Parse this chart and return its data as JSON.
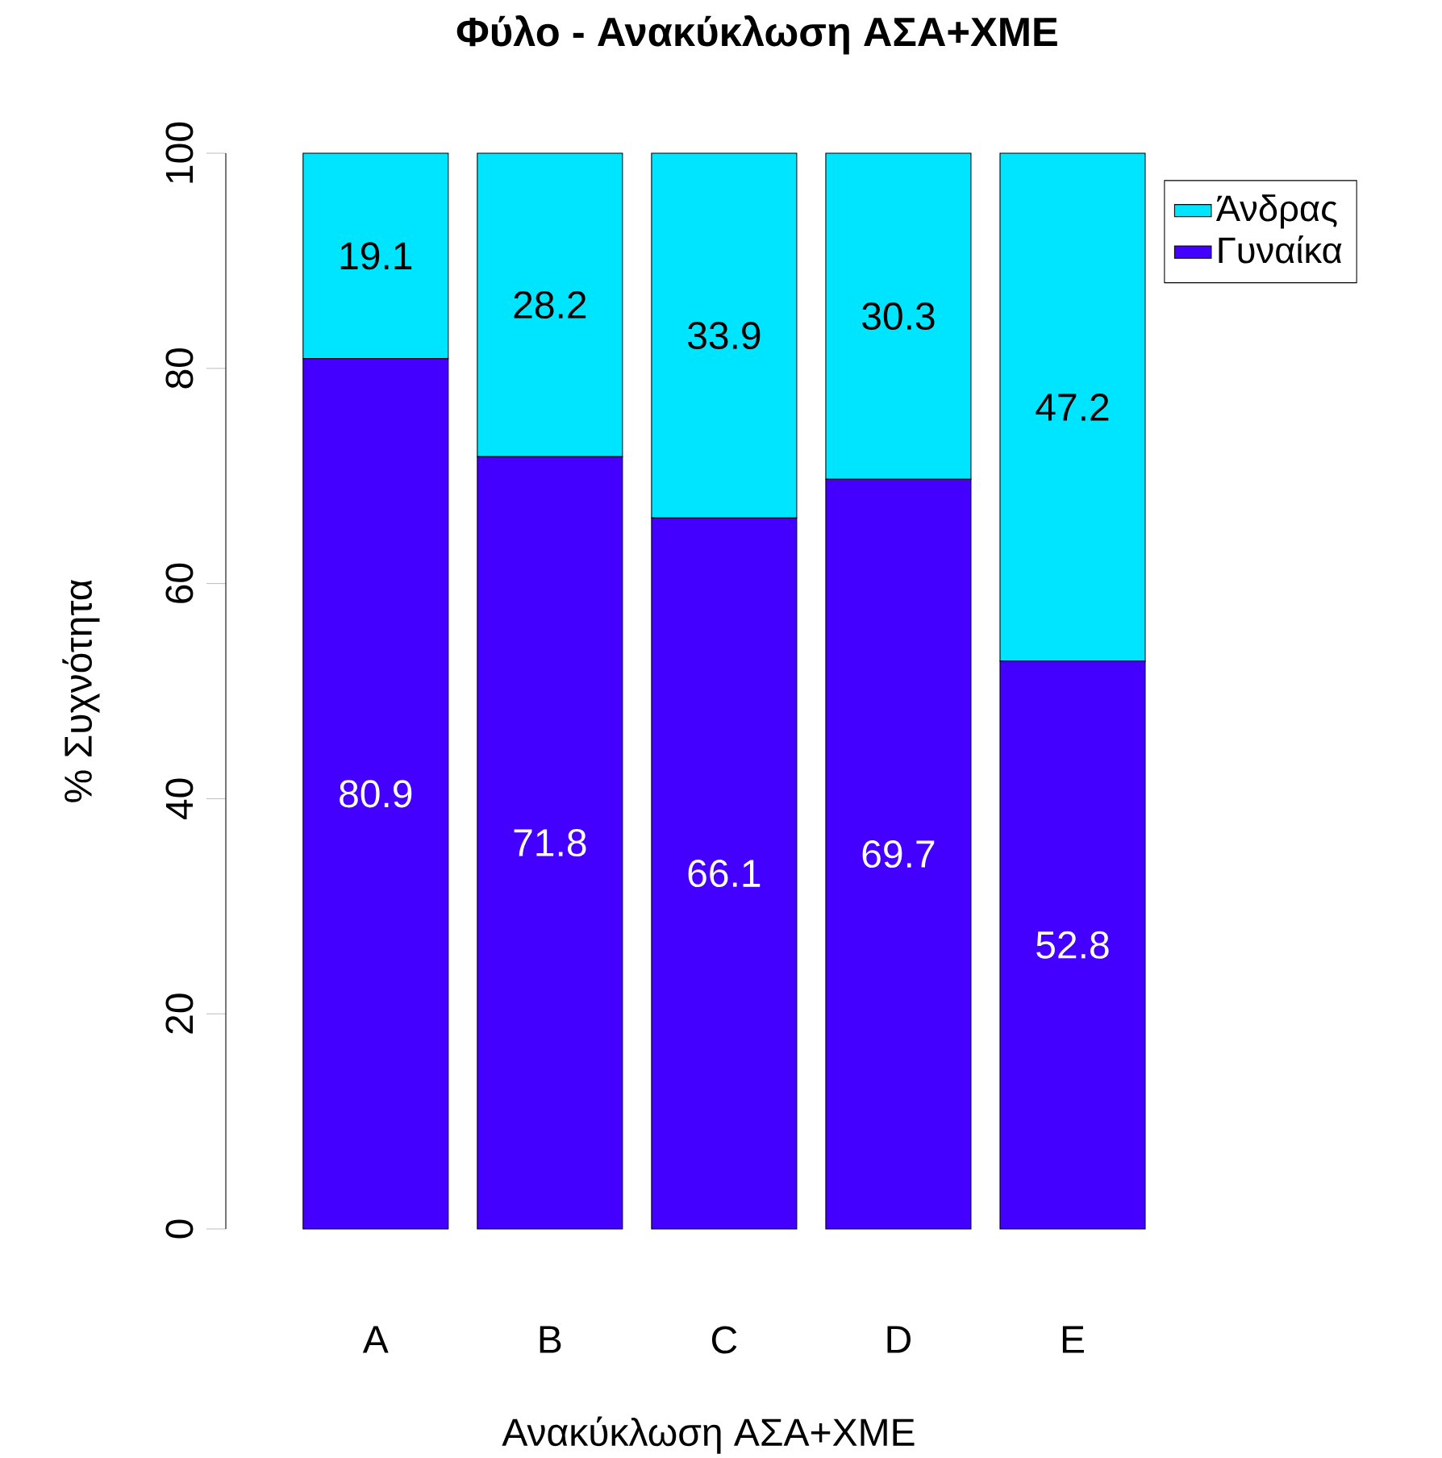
{
  "chart_data": {
    "type": "bar",
    "title": "Φύλο - Ανακύκλωση ΑΣΑ+ΧΜΕ",
    "xlabel": "Ανακύκλωση ΑΣΑ+ΧΜΕ",
    "ylabel": "% Συχνότητα",
    "categories": [
      "A",
      "B",
      "C",
      "D",
      "E"
    ],
    "stacked": true,
    "series": [
      {
        "name": "Γυναίκα",
        "color": "#4400ff",
        "values": [
          80.9,
          71.8,
          66.1,
          69.7,
          52.8
        ]
      },
      {
        "name": "Άνδρας",
        "color": "#00e5ff",
        "values": [
          19.1,
          28.2,
          33.9,
          30.3,
          47.2
        ]
      }
    ],
    "ylim": [
      0,
      100
    ],
    "yticks": [
      0,
      20,
      40,
      60,
      80,
      100
    ],
    "data_labels": true,
    "legend": "top right",
    "grid": false
  }
}
